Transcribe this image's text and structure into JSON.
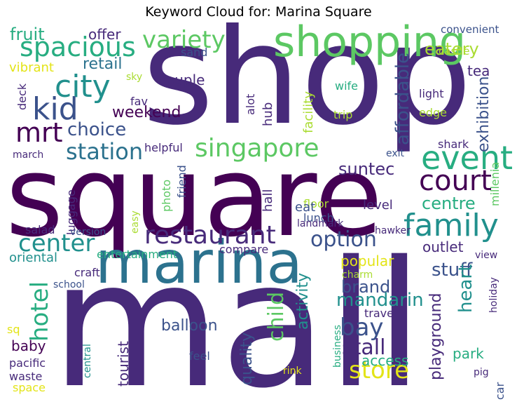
{
  "title": "Keyword Cloud for: Marina Square",
  "palette": {
    "deep": "#440154",
    "purple": "#472a7a",
    "indigo": "#3b528b",
    "blue": "#2c728e",
    "teal": "#21908d",
    "green": "#27ad81",
    "lime": "#5cc863",
    "yellowgreen": "#aadc32",
    "yellow": "#e3e418"
  },
  "words": [
    "shop",
    "square",
    "mall",
    "marina",
    "shopping",
    "spacious",
    "city",
    "kid",
    "mrt",
    "variety",
    "singapore",
    "event",
    "court",
    "family",
    "restaurant",
    "center",
    "station",
    "option",
    "hotel",
    "choice",
    "weekend",
    "retail",
    "eatery",
    "fruit",
    "offer",
    "vibrant",
    "convenient",
    "castle",
    "tea",
    "affordable",
    "exhibition",
    "light",
    "edge",
    "wife",
    "trip",
    "facility",
    "couple",
    "hub",
    "alot",
    "fav",
    "sky",
    "deck",
    "sand",
    "suntec",
    "shark",
    "exit",
    "helpful",
    "march",
    "centre",
    "floor",
    "lunch",
    "eat",
    "level",
    "hall",
    "friend",
    "photo",
    "luggage",
    "salad",
    "version",
    "easy",
    "landmark",
    "hawker",
    "millenia",
    "entertainment",
    "compare",
    "outlet",
    "view",
    "oriental",
    "craft",
    "school",
    "popular",
    "charm",
    "stuff",
    "brand",
    "mandarin",
    "bay",
    "child",
    "activity",
    "heart",
    "playground",
    "park",
    "stall",
    "store",
    "access",
    "travel",
    "quality",
    "balloon",
    "baby",
    "tourist",
    "sq",
    "pacific",
    "waste",
    "space",
    "central",
    "feel",
    "rink",
    "business",
    "pig",
    "car",
    "holiday"
  ]
}
